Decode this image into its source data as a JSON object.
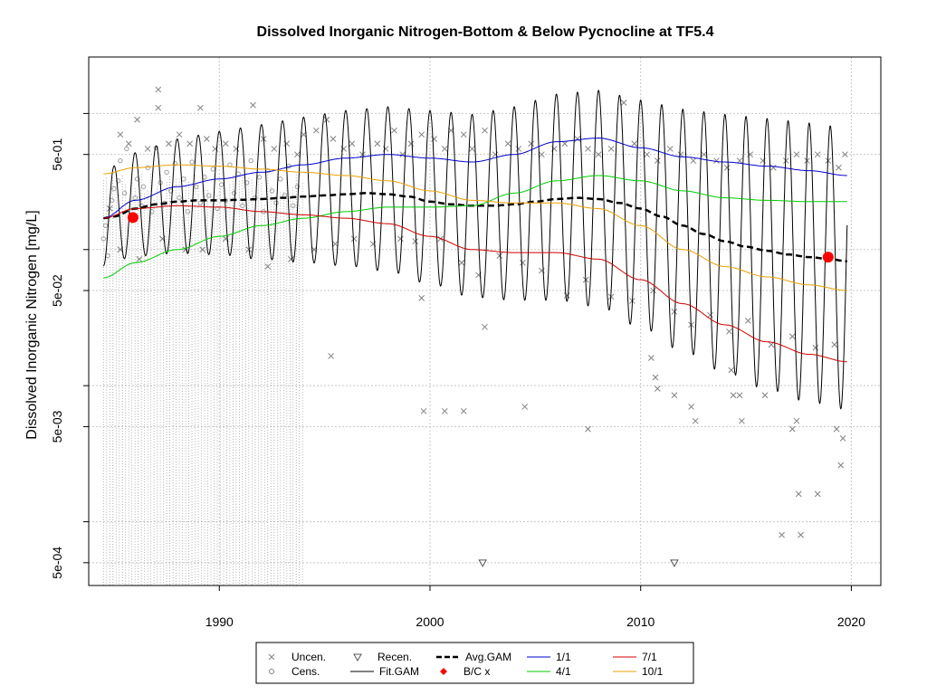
{
  "chart_data": {
    "type": "scatter",
    "title": "Dissolved Inorganic Nitrogen-Bottom & Below Pycnocline at TF5.4",
    "xlabel": "",
    "ylabel": "Dissolved Inorganic Nitrogen [mg/L]",
    "ylog": true,
    "xlim": [
      1983.8,
      2021.4
    ],
    "ylim": [
      0.00034,
      2.6
    ],
    "x_ticks": [
      1990,
      2000,
      2010,
      2020
    ],
    "x_tick_labels": [
      "1990",
      "2000",
      "2010",
      "2020"
    ],
    "y_ticks": [
      0.0005,
      0.005,
      0.05,
      0.5
    ],
    "y_tick_labels": [
      "5e-04",
      "5e-03",
      "5e-02",
      "5e-01"
    ],
    "y_minor_gridlines": [
      0.001,
      0.01,
      0.1,
      1.0
    ],
    "grid": true,
    "colors": {
      "uncen": "#808080",
      "cens": "#a0a0a0",
      "fit": "#000000",
      "avg": "#000000",
      "bc": "#ff0000",
      "s1_1": "#0000cc",
      "s4_1": "#00cc00",
      "s7_1": "#cc0000",
      "s10_1": "#e8a000"
    },
    "series": [
      {
        "name": "Avg.GAM",
        "x": [
          1984.5,
          1985,
          1986,
          1987,
          1988,
          1989,
          1990,
          1991,
          1992,
          1993,
          1994,
          1995,
          1996,
          1997,
          1998,
          1999,
          2000,
          2001,
          2002,
          2003,
          2004,
          2005,
          2006,
          2007,
          2008,
          2009,
          2010,
          2011,
          2012,
          2013,
          2014,
          2015,
          2016,
          2017,
          2018,
          2019,
          2019.8
        ],
        "y": [
          0.17,
          0.175,
          0.2,
          0.215,
          0.225,
          0.23,
          0.23,
          0.232,
          0.235,
          0.24,
          0.245,
          0.25,
          0.255,
          0.26,
          0.255,
          0.245,
          0.225,
          0.215,
          0.21,
          0.21,
          0.215,
          0.225,
          0.235,
          0.24,
          0.235,
          0.22,
          0.2,
          0.175,
          0.15,
          0.13,
          0.115,
          0.105,
          0.098,
          0.092,
          0.088,
          0.085,
          0.082
        ]
      },
      {
        "name": "1/1",
        "x": [
          1984.5,
          1986,
          1988,
          1990,
          1992,
          1994,
          1996,
          1998,
          2000,
          2002,
          2004,
          2006,
          2008,
          2010,
          2012,
          2014,
          2016,
          2018,
          2019.8
        ],
        "y": [
          0.17,
          0.23,
          0.29,
          0.33,
          0.37,
          0.42,
          0.47,
          0.5,
          0.47,
          0.44,
          0.5,
          0.62,
          0.66,
          0.56,
          0.48,
          0.44,
          0.41,
          0.38,
          0.35
        ]
      },
      {
        "name": "4/1",
        "x": [
          1984.5,
          1986,
          1988,
          1990,
          1992,
          1994,
          1996,
          1998,
          2000,
          2002,
          2004,
          2006,
          2008,
          2010,
          2012,
          2014,
          2016,
          2018,
          2019.8
        ],
        "y": [
          0.062,
          0.08,
          0.1,
          0.125,
          0.15,
          0.17,
          0.19,
          0.205,
          0.205,
          0.21,
          0.26,
          0.32,
          0.35,
          0.32,
          0.27,
          0.24,
          0.23,
          0.225,
          0.225
        ]
      },
      {
        "name": "7/1",
        "x": [
          1984.5,
          1986,
          1988,
          1990,
          1992,
          1994,
          1996,
          1998,
          2000,
          2002,
          2004,
          2006,
          2008,
          2010,
          2012,
          2014,
          2016,
          2018,
          2019.8
        ],
        "y": [
          0.17,
          0.2,
          0.21,
          0.205,
          0.19,
          0.18,
          0.17,
          0.155,
          0.125,
          0.1,
          0.095,
          0.095,
          0.085,
          0.06,
          0.04,
          0.028,
          0.021,
          0.017,
          0.015
        ]
      },
      {
        "name": "10/1",
        "x": [
          1984.5,
          1986,
          1988,
          1990,
          1992,
          1994,
          1996,
          1998,
          2000,
          2002,
          2004,
          2006,
          2008,
          2010,
          2012,
          2014,
          2016,
          2018,
          2019.8
        ],
        "y": [
          0.36,
          0.4,
          0.42,
          0.41,
          0.39,
          0.37,
          0.35,
          0.32,
          0.27,
          0.23,
          0.22,
          0.22,
          0.2,
          0.15,
          0.1,
          0.075,
          0.063,
          0.055,
          0.05
        ]
      }
    ],
    "fit_gam": {
      "name": "Fit.GAM",
      "x_start": 1984.5,
      "x_end": 2019.8,
      "period_years": 1,
      "note_peak": "1/1",
      "note_trough": "7/1"
    },
    "bc_points": [
      {
        "x": 1985.9,
        "y": 0.172
      },
      {
        "x": 2018.9,
        "y": 0.088
      }
    ],
    "uncen_points": [
      [
        1985.3,
        0.7
      ],
      [
        1985.7,
        0.6
      ],
      [
        1986.1,
        0.9
      ],
      [
        1986.6,
        0.55
      ],
      [
        1987.1,
        1.5
      ],
      [
        1987.1,
        1.1
      ],
      [
        1987.6,
        0.6
      ],
      [
        1988.1,
        0.7
      ],
      [
        1988.6,
        0.6
      ],
      [
        1989.1,
        1.1
      ],
      [
        1989.4,
        0.65
      ],
      [
        1989.8,
        0.55
      ],
      [
        1990.3,
        0.6
      ],
      [
        1990.8,
        0.55
      ],
      [
        1991.6,
        1.15
      ],
      [
        1992.1,
        0.65
      ],
      [
        1992.6,
        0.55
      ],
      [
        1993.2,
        0.6
      ],
      [
        1993.7,
        0.5
      ],
      [
        1994.0,
        0.7
      ],
      [
        1994.6,
        0.75
      ],
      [
        1995.1,
        0.9
      ],
      [
        1995.4,
        0.65
      ],
      [
        1995.9,
        0.55
      ],
      [
        1996.3,
        0.6
      ],
      [
        1996.8,
        0.5
      ],
      [
        1997.5,
        0.6
      ],
      [
        1997.9,
        0.55
      ],
      [
        1998.3,
        0.75
      ],
      [
        1998.7,
        0.5
      ],
      [
        1999.1,
        0.6
      ],
      [
        1999.6,
        0.7
      ],
      [
        2000.2,
        0.65
      ],
      [
        2000.7,
        0.55
      ],
      [
        2001.0,
        0.75
      ],
      [
        2001.6,
        0.7
      ],
      [
        2002.0,
        0.55
      ],
      [
        2002.6,
        0.75
      ],
      [
        2003.1,
        0.5
      ],
      [
        2003.7,
        0.6
      ],
      [
        2004.2,
        0.55
      ],
      [
        2004.8,
        0.6
      ],
      [
        2005.3,
        0.5
      ],
      [
        2005.9,
        0.55
      ],
      [
        2006.4,
        0.6
      ],
      [
        2007.0,
        0.65
      ],
      [
        2007.5,
        0.55
      ],
      [
        2008.0,
        0.5
      ],
      [
        2008.6,
        0.55
      ],
      [
        2009.2,
        1.2
      ],
      [
        2009.7,
        0.6
      ],
      [
        2010.3,
        0.5
      ],
      [
        2010.8,
        0.45
      ],
      [
        2011.4,
        0.55
      ],
      [
        2011.9,
        0.5
      ],
      [
        2012.5,
        0.45
      ],
      [
        2013.0,
        0.5
      ],
      [
        2013.6,
        0.45
      ],
      [
        2014.1,
        0.4
      ],
      [
        2014.7,
        0.45
      ],
      [
        2015.2,
        0.5
      ],
      [
        2015.8,
        0.45
      ],
      [
        2016.3,
        0.4
      ],
      [
        2016.9,
        0.45
      ],
      [
        2017.4,
        0.5
      ],
      [
        2017.9,
        0.45
      ],
      [
        2018.4,
        0.5
      ],
      [
        2018.9,
        0.45
      ],
      [
        2019.4,
        0.4
      ],
      [
        1984.8,
        0.2
      ],
      [
        1985.3,
        0.1
      ],
      [
        1986.2,
        0.085
      ],
      [
        1987.3,
        0.12
      ],
      [
        1988.4,
        0.1
      ],
      [
        1989.2,
        0.1
      ],
      [
        1990.3,
        0.12
      ],
      [
        1991.4,
        0.1
      ],
      [
        1992.3,
        0.075
      ],
      [
        1993.4,
        0.085
      ],
      [
        1994.5,
        0.1
      ],
      [
        1995.5,
        0.11
      ],
      [
        1996.4,
        0.12
      ],
      [
        1997.3,
        0.11
      ],
      [
        1998.6,
        0.12
      ],
      [
        1999.3,
        0.115
      ],
      [
        2000.5,
        0.12
      ],
      [
        2001.5,
        0.08
      ],
      [
        2002.3,
        0.065
      ],
      [
        2003.3,
        0.09
      ],
      [
        2004.4,
        0.08
      ],
      [
        2005.3,
        0.07
      ],
      [
        2006.5,
        0.046
      ],
      [
        2007.4,
        0.06
      ],
      [
        2008.6,
        0.045
      ],
      [
        2009.6,
        0.042
      ],
      [
        2010.6,
        0.05
      ],
      [
        2011.6,
        0.035
      ],
      [
        2012.4,
        0.028
      ],
      [
        2013.3,
        0.033
      ],
      [
        2014.2,
        0.025
      ],
      [
        2015.1,
        0.03
      ],
      [
        2016.2,
        0.02
      ],
      [
        2017.2,
        0.023
      ],
      [
        2018.3,
        0.019
      ],
      [
        2019.2,
        0.02
      ],
      [
        1999.6,
        0.044
      ],
      [
        2002.6,
        0.027
      ],
      [
        1995.3,
        0.0165
      ],
      [
        1999.7,
        0.0065
      ],
      [
        2000.7,
        0.0065
      ],
      [
        2001.6,
        0.0065
      ],
      [
        2004.5,
        0.007
      ],
      [
        2007.5,
        0.0048
      ],
      [
        2010.5,
        0.016
      ],
      [
        2010.7,
        0.0115
      ],
      [
        2010.8,
        0.0095
      ],
      [
        2011.6,
        0.0085
      ],
      [
        2012.4,
        0.007
      ],
      [
        2012.6,
        0.0055
      ],
      [
        2014.3,
        0.013
      ],
      [
        2014.4,
        0.0085
      ],
      [
        2014.7,
        0.0085
      ],
      [
        2014.8,
        0.0055
      ],
      [
        2015.9,
        0.0085
      ],
      [
        2016.7,
        0.0008
      ],
      [
        2017.2,
        0.0048
      ],
      [
        2017.4,
        0.0055
      ],
      [
        2017.5,
        0.0016
      ],
      [
        2017.6,
        0.0008
      ],
      [
        2018.4,
        0.0016
      ],
      [
        2019.3,
        0.0048
      ],
      [
        2019.6,
        0.0041
      ],
      [
        2019.5,
        0.0026
      ],
      [
        2019.7,
        0.5
      ]
    ],
    "cens_points": [
      [
        1984.5,
        0.12
      ],
      [
        1984.6,
        0.15
      ],
      [
        1984.7,
        0.09
      ],
      [
        1984.9,
        0.23
      ],
      [
        1985.0,
        0.28
      ],
      [
        1985.2,
        0.32
      ],
      [
        1985.3,
        0.45
      ],
      [
        1985.5,
        0.26
      ],
      [
        1985.6,
        0.55
      ],
      [
        1985.8,
        0.18
      ],
      [
        1986.0,
        0.24
      ],
      [
        1986.1,
        0.33
      ],
      [
        1986.3,
        0.21
      ],
      [
        1986.4,
        0.29
      ],
      [
        1986.6,
        0.4
      ],
      [
        1986.8,
        0.19
      ],
      [
        1987.0,
        0.56
      ],
      [
        1987.2,
        0.31
      ],
      [
        1987.4,
        0.22
      ],
      [
        1987.5,
        0.37
      ],
      [
        1987.7,
        0.27
      ],
      [
        1987.9,
        0.43
      ],
      [
        1988.1,
        0.24
      ],
      [
        1988.3,
        0.33
      ],
      [
        1988.5,
        0.19
      ],
      [
        1988.7,
        0.44
      ],
      [
        1988.9,
        0.29
      ],
      [
        1989.1,
        0.22
      ],
      [
        1989.3,
        0.34
      ],
      [
        1989.5,
        0.25
      ],
      [
        1989.7,
        0.39
      ],
      [
        1989.9,
        0.2
      ],
      [
        1990.1,
        0.3
      ],
      [
        1990.3,
        0.23
      ],
      [
        1990.5,
        0.42
      ],
      [
        1990.7,
        0.26
      ],
      [
        1990.9,
        0.36
      ],
      [
        1991.1,
        0.21
      ],
      [
        1991.3,
        0.31
      ],
      [
        1991.5,
        0.45
      ],
      [
        1991.7,
        0.24
      ],
      [
        1991.9,
        0.34
      ],
      [
        1992.1,
        0.19
      ],
      [
        1992.3,
        0.38
      ],
      [
        1992.5,
        0.27
      ],
      [
        1992.7,
        0.22
      ],
      [
        1992.9,
        0.33
      ],
      [
        1993.1,
        0.25
      ],
      [
        1993.3,
        0.41
      ],
      [
        1993.5,
        0.21
      ],
      [
        1993.7,
        0.29
      ]
    ],
    "recen_points": [
      [
        2002.5,
        0.0005
      ],
      [
        2011.6,
        0.0005
      ]
    ],
    "censor_segments": {
      "x_from": 1984.5,
      "x_to": 1994.0,
      "step": 0.15,
      "y_low": 0.00034
    },
    "legend": {
      "placement": "bottom-center",
      "items": [
        {
          "label": "Uncen.",
          "type": "x"
        },
        {
          "label": "Recen.",
          "type": "triangle"
        },
        {
          "label": "Avg.GAM",
          "type": "dash"
        },
        {
          "label": "1/1",
          "type": "line",
          "color": "#0000cc"
        },
        {
          "label": "7/1",
          "type": "line",
          "color": "#cc0000"
        },
        {
          "label": "Cens.",
          "type": "circle"
        },
        {
          "label": "Fit.GAM",
          "type": "line",
          "color": "#000000"
        },
        {
          "label": "B/C x",
          "type": "diamond",
          "color": "#ff0000"
        },
        {
          "label": "4/1",
          "type": "line",
          "color": "#00cc00"
        },
        {
          "label": "10/1",
          "type": "line",
          "color": "#e8a000"
        }
      ]
    }
  }
}
